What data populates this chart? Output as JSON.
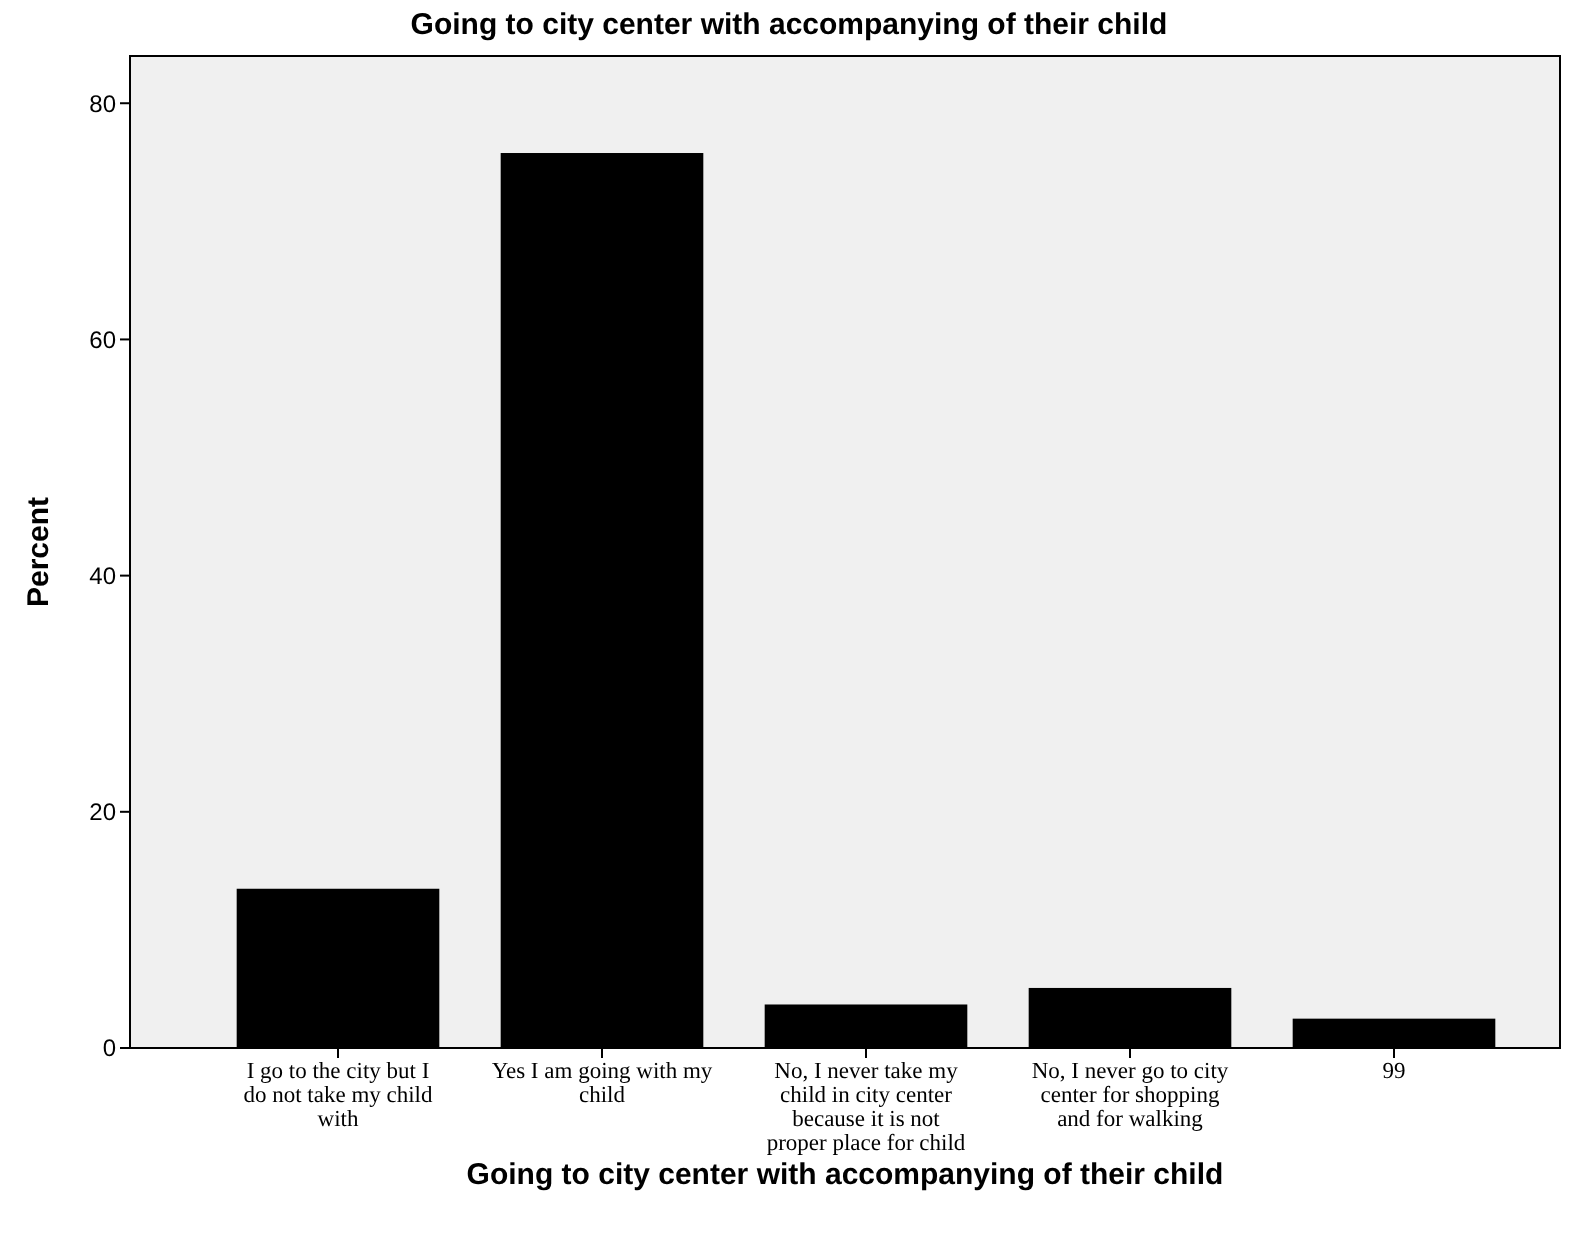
{
  "chart_data": {
    "type": "bar",
    "title": "Going to city  center with accompanying of their child",
    "xlabel": "Going to city  center with accompanying of their child",
    "ylabel": "Percent",
    "categories": [
      "I go to the city but I do not take my child with",
      "Yes I am going with my child",
      "No, I never take my child in city center because it is not proper place for child",
      "No, I never go to city center for shopping and  for walking",
      "99"
    ],
    "values": [
      13.4,
      75.7,
      3.6,
      5.0,
      2.4
    ],
    "color": "#000000",
    "ylim": [
      0,
      84
    ],
    "yticks": [
      0,
      20,
      40,
      60,
      80
    ],
    "grid": false
  }
}
